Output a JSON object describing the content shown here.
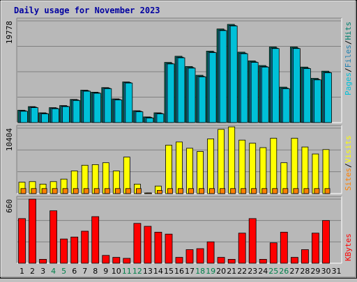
{
  "chart_data": {
    "type": "bar",
    "title": "Daily usage for November 2023",
    "categories": [
      "1",
      "2",
      "3",
      "4",
      "5",
      "6",
      "7",
      "8",
      "9",
      "10",
      "11",
      "12",
      "13",
      "14",
      "15",
      "16",
      "17",
      "18",
      "19",
      "20",
      "21",
      "22",
      "23",
      "24",
      "25",
      "26",
      "27",
      "28",
      "29",
      "30",
      "31"
    ],
    "weekend_days": [
      "4",
      "5",
      "11",
      "12",
      "18",
      "19",
      "25",
      "26"
    ],
    "colors": {
      "background": "#c0c0c0",
      "plot_background": "#b8b8b8",
      "title": "#0000a0",
      "weekday_label": "#000000",
      "weekend_label": "#00804b",
      "pages": "#00c0d8",
      "files": "#2080b0",
      "hits": "#00806e",
      "visits": "#ffff00",
      "sites": "#ff8000",
      "kbytes": "#ff0000"
    },
    "panels": [
      {
        "name": "hits-files-pages",
        "ylim_label": "19778",
        "ylim": [
          0,
          19778
        ],
        "side_labels": [
          {
            "text": "Pages",
            "color": "#00c0d8"
          },
          {
            "text": "/",
            "color": "#000000"
          },
          {
            "text": "Files",
            "color": "#2080b0"
          },
          {
            "text": "/",
            "color": "#000000"
          },
          {
            "text": "Hits",
            "color": "#00806e"
          }
        ],
        "series": [
          {
            "name": "Hits",
            "color": "#00806e",
            "values": [
              2400,
              3100,
              1900,
              2900,
              3300,
              4500,
              6300,
              5900,
              6800,
              4600,
              7900,
              2300,
              1100,
              1900,
              11700,
              12900,
              10900,
              9200,
              13900,
              18200,
              19100,
              13700,
              12000,
              11100,
              14700,
              6900,
              14700,
              10800,
              8600,
              10000,
              0
            ]
          },
          {
            "name": "Files",
            "color": "#2080b0",
            "values": [
              2300,
              3000,
              1800,
              2800,
              3200,
              4400,
              6200,
              5800,
              6700,
              4500,
              7800,
              2200,
              1000,
              1800,
              11500,
              12700,
              10700,
              9000,
              13700,
              18000,
              18900,
              13500,
              11800,
              10900,
              14500,
              6700,
              14500,
              10600,
              8400,
              9800,
              0
            ]
          },
          {
            "name": "Pages",
            "color": "#00c0d8",
            "values": [
              2200,
              2900,
              1700,
              2700,
              3100,
              4300,
              6100,
              5700,
              6600,
              4400,
              7700,
              2100,
              900,
              1700,
              11400,
              12600,
              10600,
              8900,
              13600,
              17900,
              18800,
              13400,
              11700,
              10800,
              14400,
              6600,
              14400,
              10500,
              8300,
              9700,
              0
            ]
          }
        ]
      },
      {
        "name": "visits-sites",
        "ylim_label": "10404",
        "ylim": [
          0,
          10404
        ],
        "side_labels": [
          {
            "text": "Sites",
            "color": "#ff8000"
          },
          {
            "text": "/",
            "color": "#000000"
          },
          {
            "text": "Visits",
            "color": "#ffff00"
          }
        ],
        "series": [
          {
            "name": "Visits",
            "color": "#ffff00",
            "values": [
              1800,
              1900,
              1500,
              1900,
              2300,
              3600,
              4500,
              4600,
              4900,
              3600,
              5800,
              1500,
              100,
              1200,
              7700,
              8200,
              7200,
              6700,
              8700,
              10200,
              10600,
              8500,
              8000,
              7300,
              8800,
              4900,
              8800,
              7400,
              6300,
              7000,
              0
            ]
          },
          {
            "name": "Sites",
            "color": "#ff8000",
            "values": [
              800,
              800,
              800,
              800,
              800,
              800,
              800,
              800,
              800,
              800,
              800,
              800,
              100,
              500,
              800,
              800,
              800,
              800,
              800,
              800,
              800,
              800,
              800,
              800,
              800,
              800,
              800,
              800,
              800,
              800,
              0
            ]
          }
        ]
      },
      {
        "name": "kbytes",
        "ylim_label": "660",
        "ylim": [
          0,
          660
        ],
        "side_labels": [
          {
            "text": "KBytes",
            "color": "#ff0000"
          }
        ],
        "series": [
          {
            "name": "KBytes",
            "color": "#ff0000",
            "values": [
              460,
              660,
              40,
              540,
              250,
              270,
              330,
              480,
              80,
              60,
              50,
              410,
              380,
              320,
              300,
              60,
              140,
              150,
              220,
              60,
              40,
              310,
              460,
              40,
              210,
              320,
              60,
              140,
              310,
              440,
              0
            ]
          }
        ]
      }
    ]
  }
}
